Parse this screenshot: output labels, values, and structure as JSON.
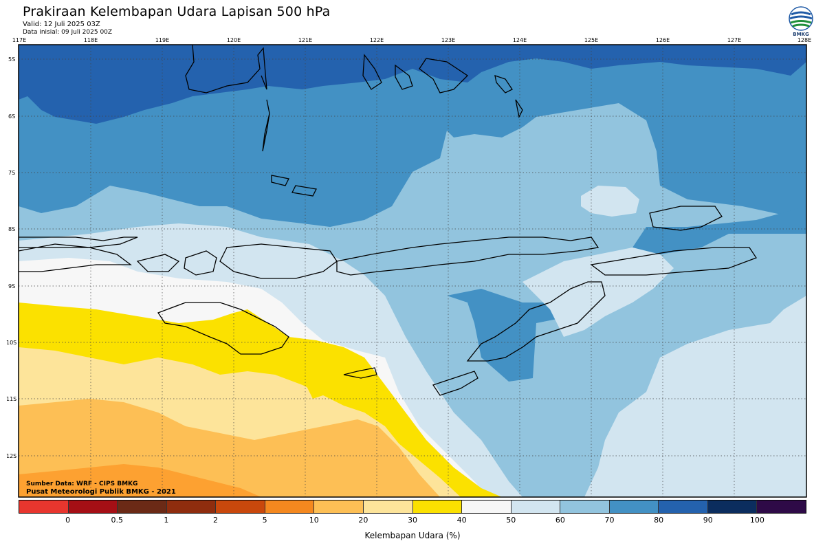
{
  "header": {
    "title": "Prakiraan Kelembapan Udara Lapisan 500 hPa",
    "valid": "Valid: 12 Juli 2025 03Z",
    "initial": "Data inisial: 09 Juli 2025 00Z"
  },
  "logo": {
    "text": "BMKG",
    "colors": [
      "#1f5aa6",
      "#1f8f3a"
    ]
  },
  "map": {
    "lon_labels": [
      "117E",
      "118E",
      "119E",
      "120E",
      "121E",
      "122E",
      "123E",
      "124E",
      "125E",
      "126E",
      "127E",
      "128E"
    ],
    "lat_labels": [
      "5S",
      "6S",
      "7S",
      "8S",
      "9S",
      "10S",
      "11S",
      "12S"
    ],
    "lon_range": [
      117,
      128
    ],
    "lat_range": [
      -4.8,
      -12.8
    ],
    "grid": "dotted",
    "colors": {
      "c80_90": "#2462ae",
      "c70_80": "#4391c4",
      "c60_70": "#92c4de",
      "c50_60": "#d2e5f0",
      "c40_50": "#f7f7f7",
      "c30_40": "#fbe100",
      "c20_30": "#fde49a",
      "c10_20": "#fdbf55",
      "c5_10": "#fda131"
    }
  },
  "credits": {
    "source": "Sumber Data: WRF - CIPS BMKG",
    "org": "Pusat Meteorologi Publik BMKG - 2021"
  },
  "colorbar": {
    "title": "Kelembapan Udara (%)",
    "labels": [
      "0",
      "0.5",
      "1",
      "2",
      "5",
      "10",
      "20",
      "30",
      "40",
      "50",
      "60",
      "70",
      "80",
      "90",
      "100"
    ],
    "colors": [
      "#e8362e",
      "#a50f15",
      "#6b2a16",
      "#8f2d0e",
      "#c9480c",
      "#f4881f",
      "#fdbf55",
      "#fde49a",
      "#fbe100",
      "#f7f7f7",
      "#d2e5f0",
      "#92c4de",
      "#4391c4",
      "#2462ae",
      "#0b2d5e",
      "#2e0a47"
    ]
  }
}
